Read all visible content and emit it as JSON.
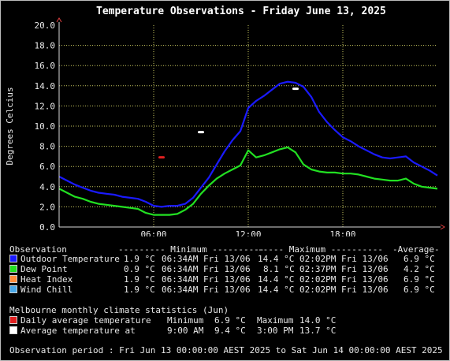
{
  "title": "Temperature Observations - Friday June 13, 2025",
  "ylabel": "Degrees Celcius",
  "colors": {
    "outdoor": "#1a1aff",
    "dewpoint": "#22e022",
    "heat_index": "#ff8c3a",
    "wind_chill": "#4aa8e8",
    "daily_avg": "#e02020",
    "avg_temp": "#ffffff",
    "grid": "#c8c860"
  },
  "legend": {
    "header": {
      "observation": "Observation",
      "minimum": "--------- Minimum ----------",
      "maximum": "----- Maximum ----------",
      "average": "-Average-"
    },
    "rows": [
      {
        "name": "Outdoor Temperature",
        "min": "1.9 °C",
        "min_time": "06:34AM Fri 13/06",
        "max": "14.4 °C",
        "max_time": "02:02PM Fri 13/06",
        "avg": "6.9 °C",
        "color": "#1a1aff"
      },
      {
        "name": "Dew Point",
        "min": "0.9 °C",
        "min_time": "06:34AM Fri 13/06",
        "max": "8.1 °C",
        "max_time": "02:37PM Fri 13/06",
        "avg": "4.2 °C",
        "color": "#22e022"
      },
      {
        "name": "Heat Index",
        "min": "1.9 °C",
        "min_time": "06:34AM Fri 13/06",
        "max": "14.4 °C",
        "max_time": "02:02PM Fri 13/06",
        "avg": "6.9 °C",
        "color": "#ff8c3a"
      },
      {
        "name": "Wind Chill",
        "min": "1.9 °C",
        "min_time": "06:34AM Fri 13/06",
        "max": "14.4 °C",
        "max_time": "02:02PM Fri 13/06",
        "avg": "6.9 °C",
        "color": "#4aa8e8"
      }
    ]
  },
  "climate": {
    "heading": "Melbourne monthly climate statistics (Jun)",
    "rows": [
      {
        "name": "Daily average temperature",
        "c1": "Minimum",
        "c2": "6.9 °C",
        "c3": "Maximum",
        "c4": "14.0 °C",
        "color": "#e02020"
      },
      {
        "name": "Average temperature at",
        "c1": "9:00 AM",
        "c2": "9.4 °C",
        "c3": "3:00 PM",
        "c4": "13.7 °C",
        "color": "#ffffff"
      }
    ]
  },
  "period": "Observation period : Fri Jun 13 00:00:00 AEST 2025 to Sat Jun 14 00:00:00 AEST 2025",
  "chart_data": {
    "type": "line",
    "xlim": [
      0,
      24
    ],
    "ylim": [
      0,
      20
    ],
    "x_ticks": [
      6,
      12,
      18
    ],
    "x_tick_labels": [
      "06:00",
      "12:00",
      "18:00"
    ],
    "y_ticks": [
      0,
      2,
      4,
      6,
      8,
      10,
      12,
      14,
      16,
      18,
      20
    ],
    "y_tick_labels": [
      "0.0",
      "2.0",
      "4.0",
      "6.0",
      "8.0",
      "10.0",
      "12.0",
      "14.0",
      "16.0",
      "18.0",
      "20.0"
    ],
    "grid": true,
    "series": [
      {
        "name": "Outdoor Temperature",
        "color": "#1a1aff",
        "x": [
          0,
          0.5,
          1,
          1.5,
          2,
          2.5,
          3,
          3.5,
          4,
          4.5,
          5,
          5.5,
          6,
          6.5,
          7,
          7.5,
          8,
          8.5,
          9,
          9.5,
          10,
          10.5,
          11,
          11.5,
          12,
          12.5,
          13,
          13.5,
          14,
          14.5,
          15,
          15.5,
          16,
          16.5,
          17,
          17.5,
          18,
          18.5,
          19,
          19.5,
          20,
          20.5,
          21,
          21.5,
          22,
          22.5,
          23,
          23.5,
          24
        ],
        "y": [
          5.0,
          4.6,
          4.2,
          3.9,
          3.6,
          3.4,
          3.3,
          3.2,
          3.0,
          2.9,
          2.8,
          2.5,
          2.1,
          2.0,
          2.1,
          2.1,
          2.3,
          2.9,
          3.9,
          4.9,
          6.2,
          7.5,
          8.6,
          9.5,
          11.8,
          12.5,
          13.0,
          13.6,
          14.2,
          14.4,
          14.3,
          13.9,
          12.9,
          11.4,
          10.4,
          9.6,
          8.9,
          8.5,
          8.0,
          7.6,
          7.2,
          6.9,
          6.8,
          6.9,
          7.0,
          6.4,
          6.0,
          5.6,
          5.1
        ]
      },
      {
        "name": "Dew Point",
        "color": "#22e022",
        "x": [
          0,
          0.5,
          1,
          1.5,
          2,
          2.5,
          3,
          3.5,
          4,
          4.5,
          5,
          5.5,
          6,
          6.5,
          7,
          7.5,
          8,
          8.5,
          9,
          9.5,
          10,
          10.5,
          11,
          11.5,
          12,
          12.5,
          13,
          13.5,
          14,
          14.5,
          15,
          15.5,
          16,
          16.5,
          17,
          17.5,
          18,
          18.5,
          19,
          19.5,
          20,
          20.5,
          21,
          21.5,
          22,
          22.5,
          23,
          23.5,
          24
        ],
        "y": [
          3.8,
          3.4,
          3.0,
          2.8,
          2.5,
          2.3,
          2.2,
          2.1,
          2.0,
          1.9,
          1.8,
          1.4,
          1.2,
          1.2,
          1.2,
          1.3,
          1.7,
          2.3,
          3.3,
          4.1,
          4.8,
          5.3,
          5.7,
          6.1,
          7.6,
          6.9,
          7.1,
          7.4,
          7.7,
          7.9,
          7.4,
          6.2,
          5.7,
          5.5,
          5.4,
          5.4,
          5.3,
          5.3,
          5.2,
          5.0,
          4.8,
          4.7,
          4.6,
          4.6,
          4.8,
          4.3,
          4.0,
          3.9,
          3.8
        ]
      }
    ],
    "markers": [
      {
        "name": "Daily average temperature",
        "x": 6.5,
        "y": 6.9,
        "color": "#e02020"
      },
      {
        "name": "Average temperature at 9:00 AM",
        "x": 9.0,
        "y": 9.4,
        "color": "#ffffff"
      },
      {
        "name": "Average temperature at 3:00 PM",
        "x": 15.0,
        "y": 13.7,
        "color": "#ffffff"
      }
    ]
  }
}
